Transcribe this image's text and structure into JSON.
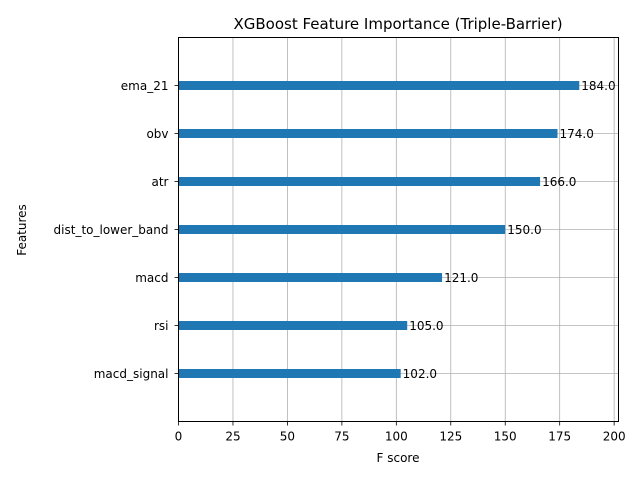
{
  "chart_data": {
    "type": "bar",
    "orientation": "horizontal",
    "title": "XGBoost Feature Importance (Triple-Barrier)",
    "xlabel": "F score",
    "ylabel": "Features",
    "categories": [
      "ema_21",
      "obv",
      "atr",
      "dist_to_lower_band",
      "macd",
      "rsi",
      "macd_signal"
    ],
    "values": [
      184.0,
      174.0,
      166.0,
      150.0,
      121.0,
      105.0,
      102.0
    ],
    "data_labels": [
      "184.0",
      "174.0",
      "166.0",
      "150.0",
      "121.0",
      "105.0",
      "102.0"
    ],
    "xlim": [
      0,
      202
    ],
    "xticks": [
      0,
      25,
      50,
      75,
      100,
      125,
      150,
      175,
      200
    ],
    "grid": true,
    "bar_color": "#1f77b4"
  }
}
